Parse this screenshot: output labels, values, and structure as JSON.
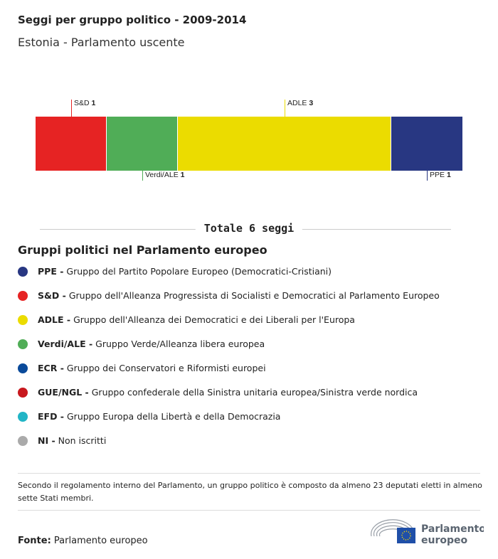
{
  "title": "Seggi per gruppo politico - 2009-2014",
  "subtitle": "Estonia - Parlamento uscente",
  "chart_data": {
    "type": "bar",
    "orientation": "stacked-horizontal",
    "categories": [
      "S&D",
      "Verdi/ALE",
      "ADLE",
      "PPE"
    ],
    "values": [
      1,
      1,
      3,
      1
    ],
    "colors": [
      "#e62323",
      "#50ad57",
      "#ebdc00",
      "#283782"
    ],
    "label_position": [
      "top",
      "bottom",
      "top",
      "bottom"
    ],
    "total": 6
  },
  "total_label": "Totale 6 seggi",
  "legend": {
    "title": "Gruppi politici nel Parlamento europeo",
    "items": [
      {
        "abbr": "PPE -",
        "name": "Gruppo del Partito Popolare Europeo (Democratici-Cristiani)",
        "color": "#283782"
      },
      {
        "abbr": "S&D -",
        "name": "Gruppo dell'Alleanza Progressista di Socialisti e Democratici al Parlamento Europeo",
        "color": "#e62323"
      },
      {
        "abbr": "ADLE -",
        "name": "Gruppo dell'Alleanza dei Democratici e dei Liberali per l'Europa",
        "color": "#ebdc00"
      },
      {
        "abbr": "Verdi/ALE -",
        "name": "Gruppo Verde/Alleanza libera europea",
        "color": "#50ad57"
      },
      {
        "abbr": "ECR -",
        "name": "Gruppo dei Conservatori e Riformisti europei",
        "color": "#0a4a9a"
      },
      {
        "abbr": "GUE/NGL -",
        "name": "Gruppo confederale della Sinistra unitaria europea/Sinistra verde nordica",
        "color": "#c8181e"
      },
      {
        "abbr": "EFD -",
        "name": "Gruppo Europa della Libertà e della Democrazia",
        "color": "#22b5c6"
      },
      {
        "abbr": "NI -",
        "name": "Non iscritti",
        "color": "#aaaaaa"
      }
    ]
  },
  "note": "Secondo il regolamento interno del Parlamento, un gruppo politico è composto da almeno 23 deputati eletti in almeno sette Stati membri.",
  "source": {
    "label": "Fonte:",
    "value": "Parlamento europeo"
  },
  "logo": {
    "text": "Parlamento europeo",
    "line1": "Parlamento",
    "line2": "europeo"
  }
}
